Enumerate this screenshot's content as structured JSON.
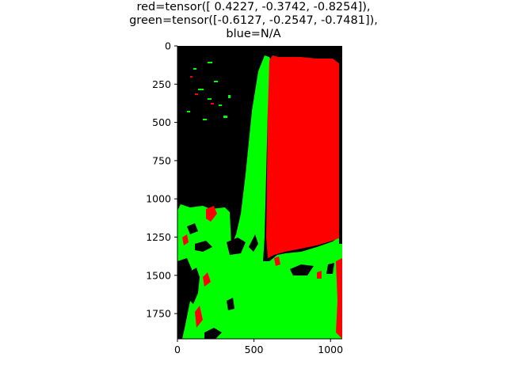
{
  "figure": {
    "title_lines": [
      "red=tensor([ 0.4227, -0.3742, -0.8254]),",
      "green=tensor([-0.6127, -0.2547, -0.7481]),",
      "blue=N/A"
    ]
  },
  "axes": {
    "x_ticks": [
      "0",
      "500",
      "1000"
    ],
    "y_ticks": [
      "0",
      "250",
      "500",
      "750",
      "1000",
      "1250",
      "1500",
      "1750"
    ]
  },
  "image": {
    "description_colors": {
      "background": "#000000",
      "red": "#ff0000",
      "green": "#00ff00"
    }
  }
}
